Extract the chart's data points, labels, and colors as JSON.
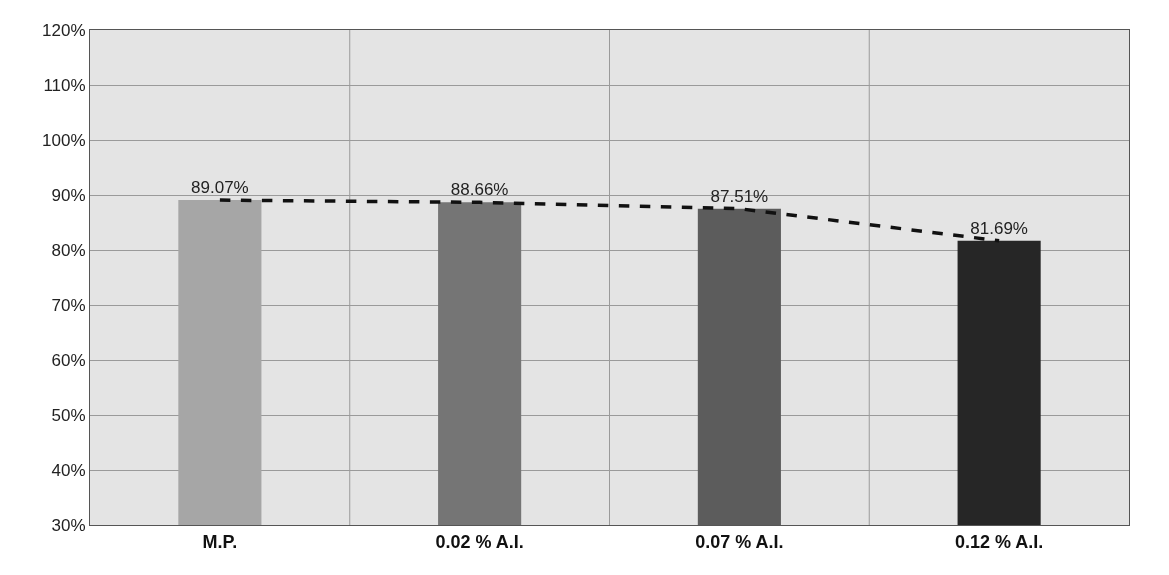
{
  "chart_data": {
    "type": "bar",
    "categories": [
      "M.P.",
      "0.02 % A.I.",
      "0.07 % A.I.",
      "0.12 % A.I."
    ],
    "series": [
      {
        "values": [
          89.07,
          88.66,
          87.51,
          81.69
        ],
        "colors": [
          "#a6a6a6",
          "#757575",
          "#5c5c5c",
          "#262626"
        ]
      },
      {
        "type": "line",
        "values": [
          89.07,
          88.66,
          87.51,
          81.69
        ],
        "color": "#111111",
        "line_style": "dashed",
        "marker": "none"
      }
    ],
    "value_labels": [
      "89.07%",
      "88.66%",
      "87.51%",
      "81.69%"
    ],
    "ylim": [
      30,
      120
    ],
    "yticks": [
      {
        "value": 30,
        "label": "30%"
      },
      {
        "value": 40,
        "label": "40%"
      },
      {
        "value": 50,
        "label": "50%"
      },
      {
        "value": 60,
        "label": "60%"
      },
      {
        "value": 70,
        "label": "70%"
      },
      {
        "value": 80,
        "label": "80%"
      },
      {
        "value": 90,
        "label": "90%"
      },
      {
        "value": 100,
        "label": "100%"
      },
      {
        "value": 110,
        "label": "110%"
      },
      {
        "value": 120,
        "label": "120%"
      }
    ],
    "grid": true,
    "legend": false
  }
}
